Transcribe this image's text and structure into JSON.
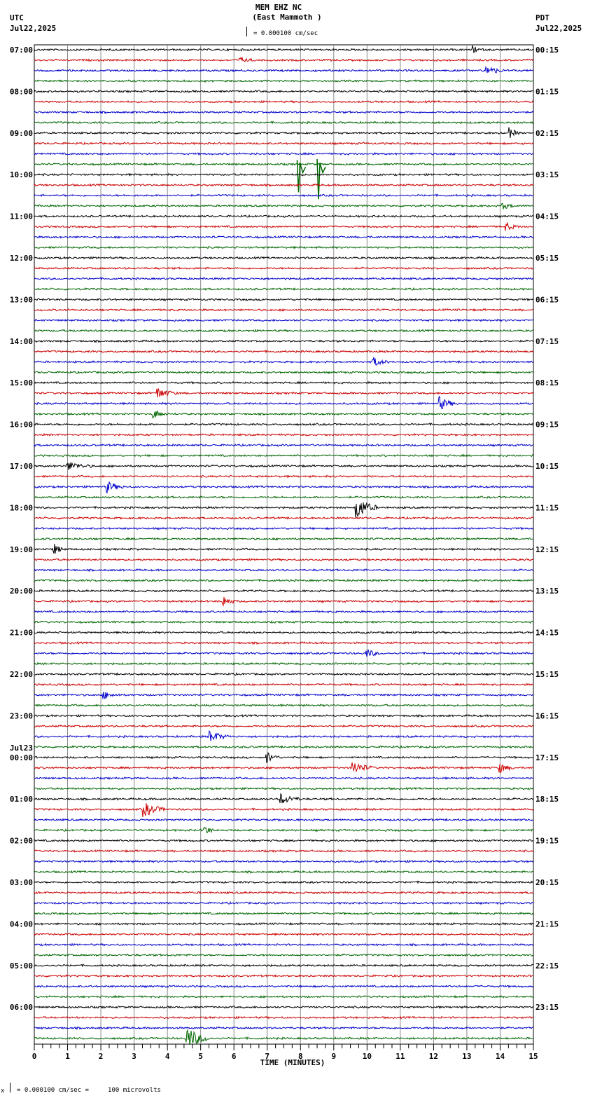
{
  "header": {
    "title": "MEM EHZ NC",
    "subtitle": "(East Mammoth )",
    "scale_label": "= 0.000100 cm/sec",
    "left_tz": "UTC",
    "left_date": "Jul22,2025",
    "right_tz": "PDT",
    "right_date": "Jul22,2025"
  },
  "footer": {
    "scale_note": "= 0.000100 cm/sec =     100 microvolts",
    "scale_prefix": "x"
  },
  "colors": {
    "trace_cycle": [
      "#000000",
      "#cc0000",
      "#0000cc",
      "#006600"
    ],
    "grid": "#888888",
    "frame": "#000000"
  },
  "chart_data": {
    "type": "line",
    "title": "MEM EHZ NC (East Mammoth ) helicorder",
    "xlabel": "TIME (MINUTES)",
    "ylabel": "",
    "x_ticks": [
      0,
      1,
      2,
      3,
      4,
      5,
      6,
      7,
      8,
      9,
      10,
      11,
      12,
      13,
      14,
      15
    ],
    "xlim": [
      0,
      15
    ],
    "traces_per_hour": 4,
    "minutes_per_trace": 15,
    "grid": true,
    "left_labels": [
      {
        "row": 0,
        "text": "07:00"
      },
      {
        "row": 4,
        "text": "08:00"
      },
      {
        "row": 8,
        "text": "09:00"
      },
      {
        "row": 12,
        "text": "10:00"
      },
      {
        "row": 16,
        "text": "11:00"
      },
      {
        "row": 20,
        "text": "12:00"
      },
      {
        "row": 24,
        "text": "13:00"
      },
      {
        "row": 28,
        "text": "14:00"
      },
      {
        "row": 32,
        "text": "15:00"
      },
      {
        "row": 36,
        "text": "16:00"
      },
      {
        "row": 40,
        "text": "17:00"
      },
      {
        "row": 44,
        "text": "18:00"
      },
      {
        "row": 48,
        "text": "19:00"
      },
      {
        "row": 52,
        "text": "20:00"
      },
      {
        "row": 56,
        "text": "21:00"
      },
      {
        "row": 60,
        "text": "22:00"
      },
      {
        "row": 64,
        "text": "23:00"
      },
      {
        "row": 68,
        "text": "00:00",
        "date": "Jul23"
      },
      {
        "row": 72,
        "text": "01:00"
      },
      {
        "row": 76,
        "text": "02:00"
      },
      {
        "row": 80,
        "text": "03:00"
      },
      {
        "row": 84,
        "text": "04:00"
      },
      {
        "row": 88,
        "text": "05:00"
      },
      {
        "row": 92,
        "text": "06:00"
      }
    ],
    "right_labels": [
      "00:15",
      "01:15",
      "02:15",
      "03:15",
      "04:15",
      "05:15",
      "06:15",
      "07:15",
      "08:15",
      "09:15",
      "10:15",
      "11:15",
      "12:15",
      "13:15",
      "14:15",
      "15:15",
      "16:15",
      "17:15",
      "18:15",
      "19:15",
      "20:15",
      "21:15",
      "22:15",
      "23:15"
    ],
    "trace_count": 96,
    "events": [
      {
        "row": 0,
        "minute": 13.2,
        "amp": 5,
        "dur": 0.3
      },
      {
        "row": 1,
        "minute": 6.2,
        "amp": 3,
        "dur": 0.4
      },
      {
        "row": 2,
        "minute": 13.6,
        "amp": 7,
        "dur": 0.5
      },
      {
        "row": 8,
        "minute": 14.3,
        "amp": 7,
        "dur": 0.3
      },
      {
        "row": 11,
        "minute": 7.9,
        "amp": 40,
        "dur": 0.1,
        "type": "spike"
      },
      {
        "row": 11,
        "minute": 8.5,
        "amp": 50,
        "dur": 0.1,
        "type": "spike"
      },
      {
        "row": 15,
        "minute": 14.1,
        "amp": 4,
        "dur": 0.4
      },
      {
        "row": 17,
        "minute": 14.2,
        "amp": 5,
        "dur": 0.4
      },
      {
        "row": 30,
        "minute": 10.2,
        "amp": 6,
        "dur": 0.5
      },
      {
        "row": 33,
        "minute": 3.7,
        "amp": 8,
        "dur": 0.6
      },
      {
        "row": 34,
        "minute": 12.2,
        "amp": 9,
        "dur": 0.5
      },
      {
        "row": 35,
        "minute": 3.6,
        "amp": 6,
        "dur": 0.4
      },
      {
        "row": 40,
        "minute": 1.0,
        "amp": 6,
        "dur": 0.8
      },
      {
        "row": 42,
        "minute": 2.2,
        "amp": 8,
        "dur": 0.5
      },
      {
        "row": 44,
        "minute": 9.7,
        "amp": 18,
        "dur": 0.6
      },
      {
        "row": 48,
        "minute": 0.6,
        "amp": 8,
        "dur": 0.3
      },
      {
        "row": 53,
        "minute": 5.7,
        "amp": 7,
        "dur": 0.4
      },
      {
        "row": 58,
        "minute": 10.0,
        "amp": 6,
        "dur": 0.4
      },
      {
        "row": 62,
        "minute": 2.1,
        "amp": 5,
        "dur": 0.5
      },
      {
        "row": 66,
        "minute": 5.3,
        "amp": 8,
        "dur": 0.6
      },
      {
        "row": 68,
        "minute": 7.0,
        "amp": 8,
        "dur": 0.4
      },
      {
        "row": 69,
        "minute": 9.6,
        "amp": 9,
        "dur": 0.6
      },
      {
        "row": 69,
        "minute": 14.0,
        "amp": 7,
        "dur": 0.4
      },
      {
        "row": 72,
        "minute": 7.4,
        "amp": 8,
        "dur": 0.6
      },
      {
        "row": 73,
        "minute": 3.3,
        "amp": 10,
        "dur": 0.7
      },
      {
        "row": 75,
        "minute": 5.1,
        "amp": 8,
        "dur": 0.3
      },
      {
        "row": 95,
        "minute": 4.6,
        "amp": 16,
        "dur": 0.7
      }
    ]
  }
}
